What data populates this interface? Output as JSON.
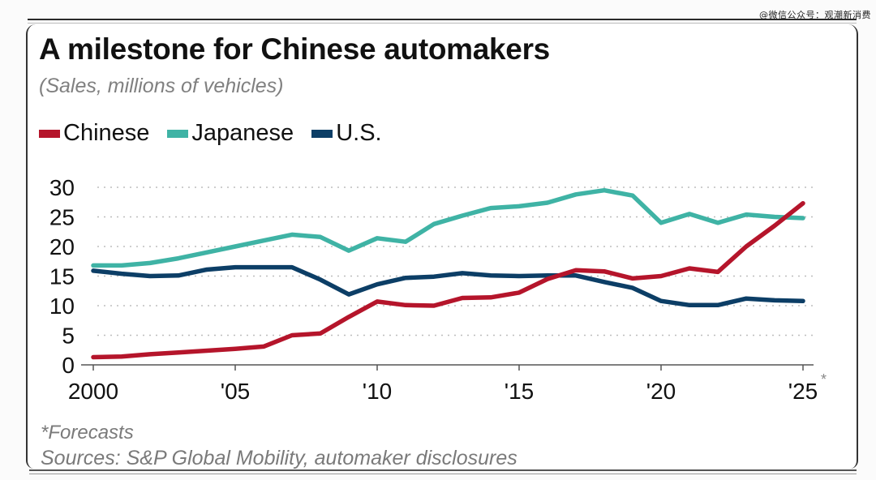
{
  "watermark": "@微信公众号：观潮新消费",
  "title": "A milestone for Chinese automakers",
  "subtitle": "(Sales, millions of vehicles)",
  "legend": [
    {
      "label": "Chinese",
      "color": "#b5152b"
    },
    {
      "label": "Japanese",
      "color": "#3fb3a5"
    },
    {
      "label": "U.S.",
      "color": "#0c3e66"
    }
  ],
  "footnote": "*Forecasts",
  "sources": "Sources: S&P Global Mobility, automaker disclosures",
  "chart_data": {
    "type": "line",
    "title": "A milestone for Chinese automakers",
    "subtitle": "(Sales, millions of vehicles)",
    "xlabel": "",
    "ylabel": "",
    "x": [
      2000,
      2001,
      2002,
      2003,
      2004,
      2005,
      2006,
      2007,
      2008,
      2009,
      2010,
      2011,
      2012,
      2013,
      2014,
      2015,
      2016,
      2017,
      2018,
      2019,
      2020,
      2021,
      2022,
      2023,
      2024,
      2025
    ],
    "xlim": [
      2000,
      2025
    ],
    "ylim": [
      0,
      30
    ],
    "yticks": [
      0,
      5,
      10,
      15,
      20,
      25,
      30
    ],
    "xticks": [
      2000,
      2005,
      2010,
      2015,
      2020,
      2025
    ],
    "xtick_labels": [
      "2000",
      "'05",
      "'10",
      "'15",
      "'20",
      "'25"
    ],
    "xtick_annotation": {
      "tick": "'25",
      "mark": "*",
      "meaning": "Forecasts"
    },
    "grid": "horizontal dotted",
    "legend_position": "top-left",
    "series": [
      {
        "name": "Chinese",
        "color": "#b5152b",
        "values": [
          1.3,
          1.4,
          1.8,
          2.1,
          2.4,
          2.7,
          3.1,
          5.0,
          5.3,
          8.1,
          10.7,
          10.1,
          10.0,
          11.3,
          11.4,
          12.2,
          14.5,
          16.0,
          15.8,
          14.6,
          15.0,
          16.3,
          15.7,
          20.0,
          23.5,
          27.3
        ]
      },
      {
        "name": "Japanese",
        "color": "#3fb3a5",
        "values": [
          16.8,
          16.8,
          17.2,
          18.0,
          19.0,
          20.0,
          21.0,
          22.0,
          21.6,
          19.3,
          21.4,
          20.8,
          23.8,
          25.2,
          26.5,
          26.8,
          27.4,
          28.8,
          29.5,
          28.6,
          24.0,
          25.5,
          24.0,
          25.4,
          25.0,
          24.8
        ]
      },
      {
        "name": "U.S.",
        "color": "#0c3e66",
        "values": [
          15.9,
          15.4,
          15.0,
          15.1,
          16.1,
          16.5,
          16.5,
          16.5,
          14.4,
          11.9,
          13.6,
          14.7,
          14.9,
          15.5,
          15.1,
          15.0,
          15.1,
          15.1,
          14.0,
          13.0,
          10.8,
          10.1,
          10.1,
          11.2,
          10.9,
          10.8
        ]
      }
    ]
  }
}
